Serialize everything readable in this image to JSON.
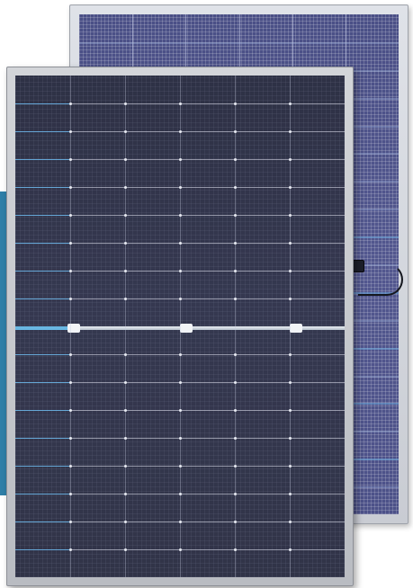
{
  "image": {
    "subject": "",
    "colors": {
      "accent_bar": "#2f7fa8",
      "front_cells": "#313448",
      "back_cells": "#4e538a",
      "frame": "#c6c9cf",
      "bus_highlight": "#69b7e2"
    }
  }
}
